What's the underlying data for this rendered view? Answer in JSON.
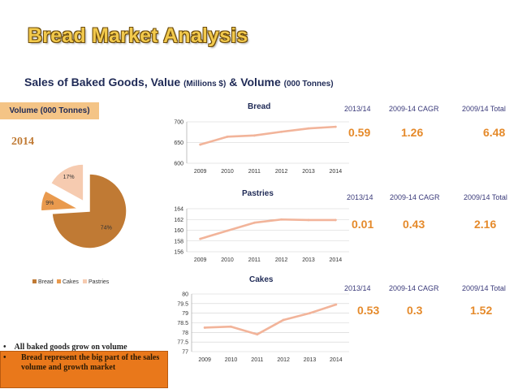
{
  "page": {
    "title": "Bread Market Analysis",
    "subtitle_main": "Sales of Baked Goods, Value",
    "subtitle_unit1": "(Millions $)",
    "subtitle_mid": "& Volume",
    "subtitle_unit2": "(000 Tonnes)",
    "volume_label": "Volume (000 Tonnes)",
    "pie_year": "2014"
  },
  "kpis": [
    {
      "h1": "2013/14",
      "h2": "2009-14 CAGR",
      "h3": "2009/14 Total",
      "v1": "0.59",
      "v2": "1.26",
      "v3": "6.48"
    },
    {
      "h1": "2013/14",
      "h2": "2009-14 CAGR",
      "h3": "2009/14 Total",
      "v1": "0.01",
      "v2": "0.43",
      "v3": "2.16"
    },
    {
      "h1": "2013/14",
      "h2": "2009-14 CAGR",
      "h3": "2009/14 Total",
      "v1": "0.53",
      "v2": "0.3",
      "v3": "1.52"
    }
  ],
  "bullets": {
    "b1": "All baked goods grow on volume",
    "b2": "Bread represent the big part of the sales volume and growth market",
    "marker": "•"
  },
  "colors": {
    "line": "#f2b49a",
    "pie_bread": "#c07a34",
    "pie_cakes": "#e99a4e",
    "pie_pastries": "#f6cbb0",
    "kpi_value": "#e58a2b",
    "title_fill": "#f2c94c",
    "accent_box": "#e9781b",
    "volume_box": "#f4c486"
  },
  "chart_data": [
    {
      "type": "pie",
      "categories": [
        "Bread",
        "Cakes",
        "Pastries"
      ],
      "values": [
        74,
        9,
        17
      ],
      "labels": [
        "74%",
        "9%",
        "17%"
      ],
      "legend": "bottom"
    },
    {
      "type": "line",
      "title": "Bread",
      "x": [
        "2009",
        "2010",
        "2011",
        "2012",
        "2013",
        "2014"
      ],
      "values": [
        645,
        664,
        667,
        676,
        684,
        688
      ],
      "ylim": [
        600,
        700
      ],
      "yticks": [
        "600",
        "650",
        "700"
      ],
      "grid": true
    },
    {
      "type": "line",
      "title": "Pastries",
      "x": [
        "2009",
        "2010",
        "2011",
        "2012",
        "2013",
        "2014"
      ],
      "values": [
        158.4,
        159.9,
        161.4,
        162.0,
        161.9,
        161.9
      ],
      "ylim": [
        156,
        164
      ],
      "yticks": [
        "156",
        "158",
        "160",
        "162",
        "164"
      ],
      "grid": true
    },
    {
      "type": "line",
      "title": "Cakes",
      "x": [
        "2009",
        "2010",
        "2011",
        "2012",
        "2013",
        "2014"
      ],
      "values": [
        78.25,
        78.3,
        77.9,
        78.65,
        79.0,
        79.45
      ],
      "ylim": [
        77,
        80
      ],
      "yticks": [
        "77",
        "77.5",
        "78",
        "78.5",
        "79",
        "79.5",
        "80"
      ],
      "grid": true
    }
  ]
}
